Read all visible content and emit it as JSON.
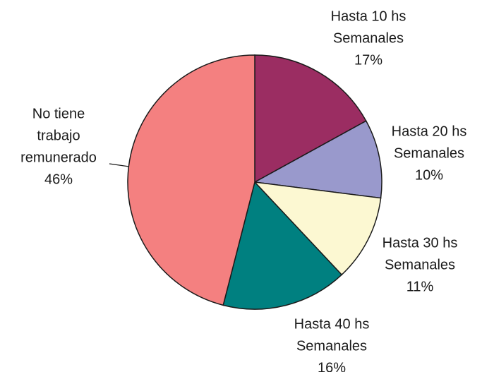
{
  "chart_data": {
    "type": "pie",
    "categories": [
      [
        "Hasta 10 hs",
        "Semanales"
      ],
      [
        "Hasta 20 hs",
        "Semanales"
      ],
      [
        "Hasta 30 hs",
        "Semanales"
      ],
      [
        "Hasta 40 hs",
        "Semanales"
      ],
      [
        "No tiene",
        "trabajo",
        "remunerado"
      ]
    ],
    "values": [
      17,
      10,
      11,
      16,
      46
    ],
    "value_labels": [
      "17%",
      "10%",
      "11%",
      "16%",
      "46%"
    ],
    "colors": [
      "#9b2d62",
      "#9999cc",
      "#fcf8d2",
      "#008080",
      "#f48080"
    ]
  }
}
